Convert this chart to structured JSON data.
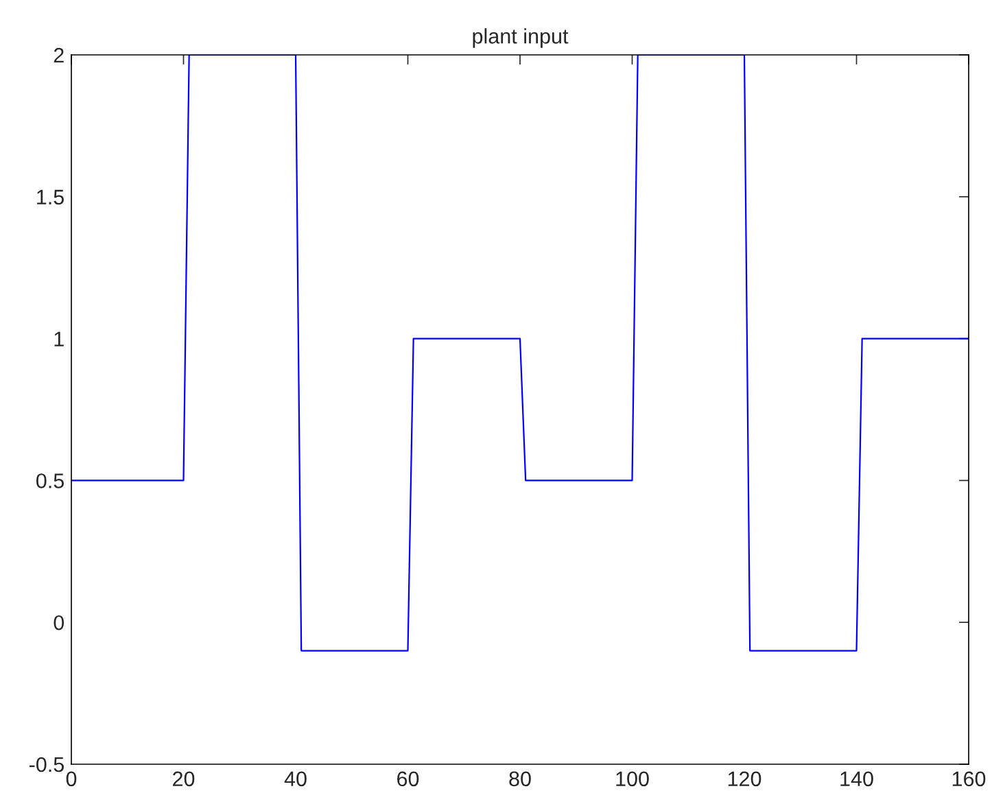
{
  "chart_data": {
    "type": "line",
    "title": "plant input",
    "x": [
      0,
      20,
      21,
      40,
      41,
      60,
      61,
      80,
      81,
      100,
      101,
      120,
      121,
      140,
      141,
      160
    ],
    "series": [
      {
        "color": "#0000ff",
        "values": [
          0.5,
          0.5,
          2,
          2,
          -0.1,
          -0.1,
          1,
          1,
          0.5,
          0.5,
          2,
          2,
          -0.1,
          -0.1,
          1,
          1
        ]
      }
    ],
    "xlim": [
      0,
      160
    ],
    "xticks": [
      0,
      20,
      40,
      60,
      80,
      100,
      120,
      140,
      160
    ],
    "ylim": [
      -0.5,
      2
    ],
    "yticks": [
      -0.5,
      0,
      0.5,
      1,
      1.5,
      2
    ],
    "grid": false,
    "legend": false
  }
}
